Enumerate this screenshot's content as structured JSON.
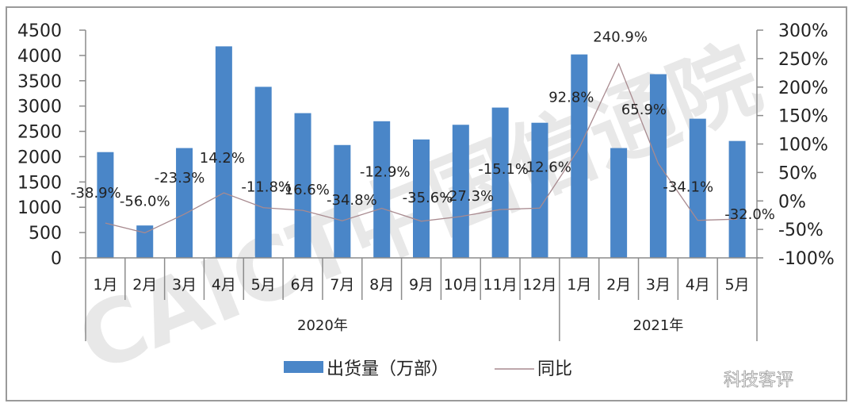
{
  "chart_data": {
    "type": "bar",
    "combo": "bar+line",
    "title": "",
    "categories": [
      "1月",
      "2月",
      "3月",
      "4月",
      "5月",
      "6月",
      "7月",
      "8月",
      "9月",
      "10月",
      "11月",
      "12月",
      "1月",
      "2月",
      "3月",
      "4月",
      "5月"
    ],
    "category_groups": [
      {
        "label": "2020年",
        "start": 0,
        "count": 12
      },
      {
        "label": "2021年",
        "start": 12,
        "count": 5
      }
    ],
    "series": [
      {
        "name": "出货量（万部）",
        "type": "bar",
        "axis": "left",
        "color": "#4a86c8",
        "values": [
          2090,
          640,
          2170,
          4180,
          3380,
          2860,
          2230,
          2700,
          2340,
          2630,
          2970,
          2670,
          4020,
          2170,
          3630,
          2750,
          2310
        ]
      },
      {
        "name": "同比",
        "type": "line",
        "axis": "right",
        "color": "#a88a8f",
        "values": [
          -38.9,
          -56.0,
          -23.3,
          14.2,
          -11.8,
          -16.6,
          -34.8,
          -12.9,
          -35.6,
          -27.3,
          -15.1,
          -12.6,
          92.8,
          240.9,
          65.9,
          -34.1,
          -32.0
        ],
        "data_labels": [
          "-38.9%",
          "-56.0%",
          "-23.3%",
          "14.2%",
          "-11.8%",
          "-16.6%",
          "-34.8%",
          "-12.9%",
          "-35.6%",
          "-27.3%",
          "-15.1%",
          "-12.6%",
          "92.8%",
          "240.9%",
          "65.9%",
          "-34.1%",
          "-32.0%"
        ]
      }
    ],
    "left_axis": {
      "ylim": [
        0,
        4500
      ],
      "ticks": [
        0,
        500,
        1000,
        1500,
        2000,
        2500,
        3000,
        3500,
        4000,
        4500
      ],
      "tick_labels": [
        "0",
        "500",
        "1000",
        "1500",
        "2000",
        "2500",
        "3000",
        "3500",
        "4000",
        "4500"
      ]
    },
    "right_axis": {
      "ylim": [
        -100,
        300
      ],
      "ticks": [
        -100,
        -50,
        0,
        50,
        100,
        150,
        200,
        250,
        300
      ],
      "tick_labels": [
        "-100%",
        "-50%",
        "0%",
        "50%",
        "100%",
        "150%",
        "200%",
        "250%",
        "300%"
      ]
    },
    "xlabel": "",
    "ylabel": "",
    "grid": false,
    "legend": {
      "position": "bottom",
      "entries": [
        {
          "label": "出货量（万部）",
          "symbol": "bar",
          "color": "#4a86c8"
        },
        {
          "label": "同比",
          "symbol": "line",
          "color": "#a88a8f"
        }
      ]
    }
  },
  "watermarks": {
    "background": "CAICT中国信通院",
    "corner": "科技客评"
  }
}
